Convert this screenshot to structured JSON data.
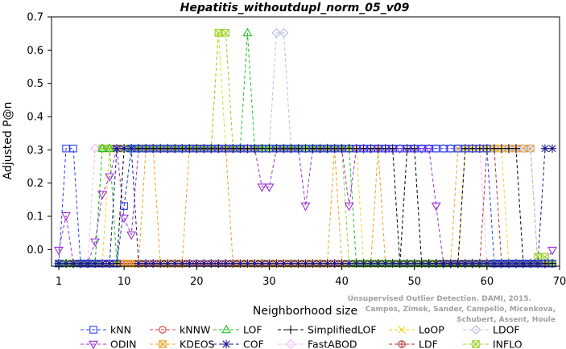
{
  "chart_data": {
    "type": "line",
    "title": "Hepatitis_withoutdupl_norm_05_v09",
    "xlabel": "Neighborhood size",
    "ylabel": "Adjusted P@n",
    "xlim": [
      0,
      70
    ],
    "ylim": [
      -0.05,
      0.7
    ],
    "xticks": [
      1,
      10,
      20,
      30,
      40,
      50,
      60,
      70
    ],
    "yticks": [
      0.0,
      0.1,
      0.2,
      0.3,
      0.4,
      0.5,
      0.6,
      0.7
    ],
    "ytick_labels": [
      "0.0",
      "0.1",
      "0.2",
      "0.3",
      "0.4",
      "0.5",
      "0.6",
      "0.7"
    ],
    "grid": false,
    "legend_position": "bottom",
    "watermark": [
      "Schubert, Assent, Houle",
      "Campos, Zimek, Sander, Campello, Micenkova,",
      "Unsupervised Outlier Detection. DAMI, 2015."
    ],
    "series": [
      {
        "name": "kNN",
        "color": "#2b3ff0",
        "marker": "square",
        "segments": [
          [
            [
              1,
              -0.042
            ],
            [
              2,
              0.304
            ],
            [
              3,
              0.304
            ],
            [
              4,
              -0.042
            ],
            [
              9,
              -0.042
            ],
            [
              10,
              0.131
            ],
            [
              11,
              0.304
            ],
            [
              60,
              0.304
            ],
            [
              61,
              -0.042
            ],
            [
              69,
              -0.042
            ]
          ]
        ]
      },
      {
        "name": "kNNW",
        "color": "#e03a3a",
        "marker": "circle",
        "segments": [
          [
            [
              1,
              -0.042
            ],
            [
              69,
              -0.042
            ]
          ]
        ]
      },
      {
        "name": "LOF",
        "color": "#22c022",
        "marker": "triangle-up",
        "segments": [
          [
            [
              1,
              -0.042
            ],
            [
              6,
              -0.042
            ],
            [
              7,
              0.304
            ],
            [
              8,
              0.304
            ],
            [
              9,
              -0.042
            ],
            [
              11,
              0.304
            ],
            [
              26,
              0.304
            ],
            [
              27,
              0.652
            ],
            [
              28,
              0.304
            ],
            [
              41,
              0.304
            ],
            [
              42,
              -0.042
            ],
            [
              69,
              -0.042
            ]
          ]
        ]
      },
      {
        "name": "SimplifiedLOF",
        "color": "#000000",
        "marker": "plus",
        "segments": [
          [
            [
              1,
              -0.042
            ],
            [
              9,
              -0.042
            ],
            [
              10,
              0.304
            ],
            [
              47,
              0.304
            ],
            [
              48,
              -0.042
            ],
            [
              49,
              0.304
            ],
            [
              50,
              0.304
            ],
            [
              51,
              -0.042
            ],
            [
              56,
              -0.042
            ],
            [
              57,
              0.304
            ],
            [
              64,
              0.304
            ],
            [
              65,
              -0.042
            ],
            [
              69,
              -0.042
            ]
          ]
        ]
      },
      {
        "name": "LoOP",
        "color": "#f2d61a",
        "marker": "x",
        "segments": [
          [
            [
              1,
              -0.042
            ],
            [
              7,
              -0.042
            ],
            [
              8,
              0.304
            ],
            [
              22,
              0.304
            ],
            [
              23,
              0.652
            ],
            [
              24,
              0.304
            ],
            [
              42,
              0.304
            ],
            [
              43,
              -0.042
            ],
            [
              56,
              -0.042
            ],
            [
              57,
              0.304
            ],
            [
              62,
              0.304
            ],
            [
              63,
              -0.042
            ],
            [
              69,
              -0.042
            ]
          ]
        ]
      },
      {
        "name": "LDOF",
        "color": "#b8b8ee",
        "marker": "diamond",
        "segments": [
          [
            [
              1,
              -0.042
            ],
            [
              6,
              -0.042
            ],
            [
              7,
              0.304
            ],
            [
              30,
              0.304
            ],
            [
              31,
              0.652
            ],
            [
              32,
              0.652
            ],
            [
              33,
              0.304
            ],
            [
              66,
              0.304
            ],
            [
              67,
              -0.042
            ],
            [
              69,
              -0.042
            ]
          ]
        ]
      },
      {
        "name": "ODIN",
        "color": "#9a30d0",
        "marker": "triangle-down",
        "segments": [
          [
            [
              1,
              -0.002
            ],
            [
              2,
              0.102
            ],
            [
              3,
              -0.042
            ],
            [
              5,
              -0.042
            ],
            [
              6,
              0.023
            ],
            [
              7,
              0.166
            ],
            [
              8,
              0.219
            ],
            [
              9,
              0.304
            ],
            [
              10,
              0.095
            ],
            [
              11,
              0.044
            ],
            [
              12,
              0.304
            ],
            [
              28,
              0.304
            ],
            [
              29,
              0.188
            ],
            [
              30,
              0.188
            ],
            [
              31,
              0.304
            ],
            [
              34,
              0.304
            ],
            [
              35,
              0.131
            ],
            [
              36,
              0.304
            ],
            [
              40,
              0.304
            ],
            [
              41,
              0.131
            ],
            [
              42,
              0.304
            ],
            [
              51,
              0.304
            ],
            [
              52,
              0.304
            ],
            [
              53,
              0.131
            ],
            [
              54,
              -0.042
            ],
            [
              68,
              -0.042
            ],
            [
              69,
              -0.002
            ]
          ]
        ]
      },
      {
        "name": "KDEOS",
        "color": "#f0a020",
        "marker": "square-x",
        "segments": [
          [
            [
              1,
              -0.042
            ],
            [
              12,
              -0.042
            ],
            [
              13,
              0.304
            ],
            [
              14,
              0.304
            ],
            [
              15,
              -0.042
            ],
            [
              18,
              -0.042
            ],
            [
              19,
              0.304
            ],
            [
              24,
              0.304
            ],
            [
              25,
              -0.042
            ],
            [
              38,
              -0.042
            ],
            [
              39,
              0.304
            ],
            [
              40,
              -0.042
            ],
            [
              44,
              -0.042
            ],
            [
              45,
              0.304
            ],
            [
              46,
              -0.042
            ],
            [
              55,
              -0.042
            ],
            [
              56,
              0.304
            ],
            [
              66,
              0.304
            ],
            [
              67,
              -0.042
            ],
            [
              69,
              -0.042
            ]
          ]
        ]
      },
      {
        "name": "COF",
        "color": "#1a1a8c",
        "marker": "asterisk",
        "segments": [
          [
            [
              1,
              -0.042
            ],
            [
              8,
              -0.042
            ],
            [
              9,
              0.304
            ],
            [
              10,
              0.304
            ],
            [
              11,
              0.304
            ],
            [
              12,
              -0.042
            ],
            [
              67,
              -0.042
            ],
            [
              68,
              0.304
            ],
            [
              69,
              0.304
            ]
          ]
        ]
      },
      {
        "name": "FastABOD",
        "color": "#f4b8f0",
        "marker": "diamond",
        "segments": [
          [
            [
              1,
              -0.042
            ],
            [
              5,
              -0.042
            ],
            [
              6,
              0.304
            ],
            [
              59,
              0.304
            ],
            [
              60,
              -0.042
            ],
            [
              69,
              -0.042
            ]
          ]
        ]
      },
      {
        "name": "LDF",
        "color": "#b03030",
        "marker": "circle-plus",
        "segments": [
          [
            [
              1,
              -0.042
            ],
            [
              59,
              -0.042
            ],
            [
              60,
              0.304
            ],
            [
              61,
              0.304
            ],
            [
              62,
              -0.042
            ],
            [
              69,
              -0.042
            ]
          ]
        ]
      },
      {
        "name": "INFLO",
        "color": "#9ad020",
        "marker": "square-x",
        "segments": [
          [
            [
              1,
              -0.042
            ],
            [
              6,
              -0.042
            ],
            [
              7,
              0.304
            ],
            [
              22,
              0.304
            ],
            [
              23,
              0.652
            ],
            [
              24,
              0.652
            ],
            [
              25,
              0.304
            ],
            [
              40,
              0.304
            ],
            [
              41,
              -0.042
            ],
            [
              66,
              -0.042
            ],
            [
              67,
              -0.022
            ],
            [
              68,
              -0.022
            ],
            [
              69,
              -0.042
            ]
          ]
        ]
      }
    ]
  },
  "legend": {
    "items": [
      {
        "name": "kNN",
        "series": 0
      },
      {
        "name": "kNNW",
        "series": 1
      },
      {
        "name": "LOF",
        "series": 2
      },
      {
        "name": "SimplifiedLOF",
        "series": 3
      },
      {
        "name": "LoOP",
        "series": 4
      },
      {
        "name": "LDOF",
        "series": 5
      },
      {
        "name": "ODIN",
        "series": 6
      },
      {
        "name": "KDEOS",
        "series": 7
      },
      {
        "name": "COF",
        "series": 8
      },
      {
        "name": "FastABOD",
        "series": 9
      },
      {
        "name": "LDF",
        "series": 10
      },
      {
        "name": "INFLO",
        "series": 11
      }
    ]
  }
}
